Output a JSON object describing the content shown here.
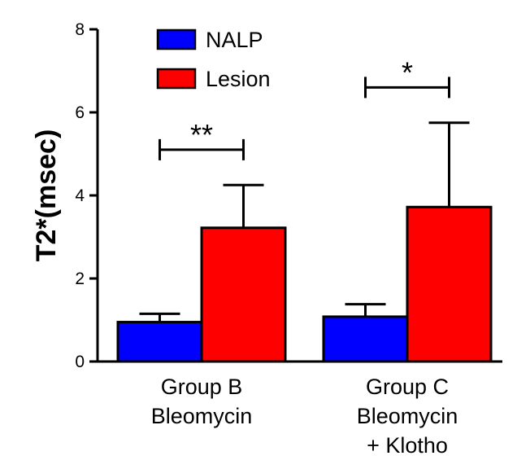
{
  "chart_data": {
    "type": "bar",
    "ylabel": "T2*(msec)",
    "ylim": [
      0,
      8
    ],
    "yticks": [
      "0",
      "2",
      "4",
      "6",
      "8"
    ],
    "categories": [
      [
        "Group B",
        "Bleomycin"
      ],
      [
        "Group C",
        "Bleomycin",
        "+ Klotho"
      ]
    ],
    "series": [
      {
        "name": "NALP",
        "color": "#0000ff",
        "values": [
          0.95,
          1.08
        ],
        "errors": [
          0.2,
          0.3
        ]
      },
      {
        "name": "Lesion",
        "color": "#ff0000",
        "values": [
          3.22,
          3.72
        ],
        "errors": [
          1.03,
          2.03
        ]
      }
    ],
    "significance": [
      {
        "label": "**",
        "level": 5.1
      },
      {
        "label": "*",
        "level": 6.6
      }
    ],
    "legend": "top-left"
  }
}
